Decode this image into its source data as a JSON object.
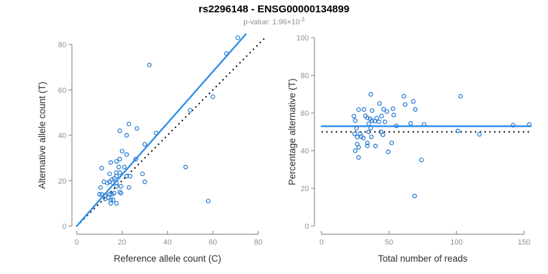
{
  "header": {
    "title": "rs2296148 - ENSG00000134899",
    "pvalue": {
      "label": "p-value: ",
      "mantissa": "1.96",
      "multiplier": "×",
      "base": "10",
      "exponent": "-3"
    }
  },
  "colors": {
    "point": "#2c7fd2",
    "fit_line": "#2e8fe8",
    "reference_line": "#111111",
    "axis": "#8f8f8f",
    "tick_label": "#8f8f8f",
    "axis_title": "#2e2e2e",
    "title": "#000000",
    "subtitle": "#8f8f8f"
  },
  "chart_data": [
    {
      "type": "scatter",
      "name": "allele-counts-scatter",
      "xlabel": "Reference allele count (C)",
      "ylabel": "Alternative allele count (T)",
      "xlim": [
        0,
        80
      ],
      "ylim": [
        0,
        80
      ],
      "xticks": [
        0,
        20,
        40,
        60,
        80
      ],
      "yticks": [
        0,
        20,
        40,
        60,
        80
      ],
      "grid": false,
      "legend": false,
      "points": [
        [
          19,
          42
        ],
        [
          23,
          45
        ],
        [
          26.5,
          43
        ],
        [
          22,
          40
        ],
        [
          35,
          41
        ],
        [
          30,
          36
        ],
        [
          32,
          71
        ],
        [
          71,
          83
        ],
        [
          66,
          76
        ],
        [
          60,
          57
        ],
        [
          50,
          51
        ],
        [
          48,
          26
        ],
        [
          58,
          11
        ],
        [
          20,
          33
        ],
        [
          22,
          31.5
        ],
        [
          15,
          28
        ],
        [
          17.5,
          28.5
        ],
        [
          19,
          29.5
        ],
        [
          26,
          29.5
        ],
        [
          11,
          25.5
        ],
        [
          18.5,
          26
        ],
        [
          21,
          26
        ],
        [
          14.5,
          23
        ],
        [
          17.5,
          23.5
        ],
        [
          19,
          23.5
        ],
        [
          17.5,
          22
        ],
        [
          15.5,
          20.5
        ],
        [
          16.5,
          21
        ],
        [
          22,
          22
        ],
        [
          23.5,
          22
        ],
        [
          29,
          23
        ],
        [
          30,
          19.5
        ],
        [
          12,
          19.5
        ],
        [
          13.5,
          19
        ],
        [
          14.5,
          19.5
        ],
        [
          16,
          19
        ],
        [
          17.5,
          19
        ],
        [
          10.5,
          17
        ],
        [
          17.5,
          17.5
        ],
        [
          19.5,
          17.5
        ],
        [
          23,
          17
        ],
        [
          19,
          15
        ],
        [
          10,
          14
        ],
        [
          11,
          14
        ],
        [
          12.5,
          13.5
        ],
        [
          14.5,
          14
        ],
        [
          15.5,
          14
        ],
        [
          16.5,
          14.5
        ],
        [
          19.5,
          14.5
        ],
        [
          12.5,
          12
        ],
        [
          14,
          12.5
        ],
        [
          15,
          11.5
        ],
        [
          16,
          11.5
        ],
        [
          15,
          10
        ],
        [
          17.5,
          10
        ]
      ],
      "lines": [
        {
          "name": "identity-line",
          "style": "dotted",
          "color": "#111111",
          "x1": 0,
          "y1": 0,
          "x2": 83,
          "y2": 83
        },
        {
          "name": "regression-line",
          "style": "solid",
          "color": "#2e8fe8",
          "x1": 0,
          "y1": 0,
          "x2": 74.5,
          "y2": 84.5
        }
      ]
    },
    {
      "type": "scatter",
      "name": "percentage-alternative-scatter",
      "xlabel": "Total number of reads",
      "ylabel": "Percentage alternative (T)",
      "xlim": [
        0,
        155
      ],
      "ylim": [
        0,
        100
      ],
      "xticks": [
        0,
        50,
        100,
        150
      ],
      "yticks": [
        0,
        20,
        40,
        60,
        80,
        100
      ],
      "grid": false,
      "legend": false,
      "points": [
        [
          61,
          68.9
        ],
        [
          68,
          66.2
        ],
        [
          69.5,
          61.9
        ],
        [
          62,
          64.5
        ],
        [
          76,
          53.9
        ],
        [
          66,
          54.5
        ],
        [
          103,
          68.9
        ],
        [
          154,
          53.9
        ],
        [
          142,
          53.5
        ],
        [
          117,
          48.7
        ],
        [
          101,
          50.5
        ],
        [
          74,
          35.1
        ],
        [
          69,
          15.9
        ],
        [
          53,
          62.3
        ],
        [
          53.5,
          58.9
        ],
        [
          43,
          65.1
        ],
        [
          46,
          62
        ],
        [
          48.5,
          60.8
        ],
        [
          55.5,
          53.2
        ],
        [
          36.5,
          69.9
        ],
        [
          44.5,
          58.4
        ],
        [
          47,
          55.3
        ],
        [
          37.5,
          61.3
        ],
        [
          41,
          57.3
        ],
        [
          42.5,
          55.3
        ],
        [
          39.5,
          55.7
        ],
        [
          36,
          56.9
        ],
        [
          37.5,
          56
        ],
        [
          44,
          50
        ],
        [
          45.5,
          48.4
        ],
        [
          52,
          44.2
        ],
        [
          49.5,
          39.4
        ],
        [
          31.5,
          61.9
        ],
        [
          32.5,
          58.5
        ],
        [
          34,
          57.4
        ],
        [
          35,
          54.3
        ],
        [
          36.5,
          52.1
        ],
        [
          27.5,
          61.8
        ],
        [
          35,
          50
        ],
        [
          37,
          47.3
        ],
        [
          40,
          42.5
        ],
        [
          34,
          44.1
        ],
        [
          24,
          58.3
        ],
        [
          25,
          56
        ],
        [
          26,
          51.9
        ],
        [
          28.5,
          49.1
        ],
        [
          29.5,
          47.5
        ],
        [
          31,
          46.8
        ],
        [
          34,
          42.6
        ],
        [
          24.5,
          49
        ],
        [
          26.5,
          47.2
        ],
        [
          26.5,
          43.4
        ],
        [
          27.5,
          41.8
        ],
        [
          25,
          40
        ],
        [
          27.5,
          36.4
        ]
      ],
      "lines": [
        {
          "name": "null-percentage-line",
          "style": "dotted",
          "color": "#111111",
          "x1": 0,
          "y1": 50,
          "x2": 155,
          "y2": 50
        },
        {
          "name": "mean-percentage-line",
          "style": "solid",
          "color": "#2e8fe8",
          "x1": 0,
          "y1": 53,
          "x2": 155,
          "y2": 53
        }
      ]
    }
  ]
}
